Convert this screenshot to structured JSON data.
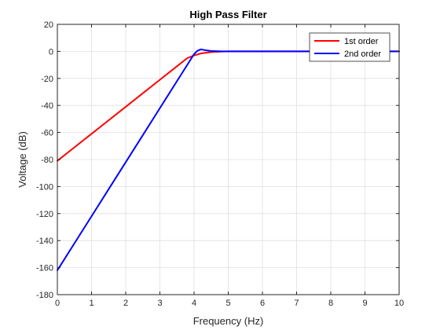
{
  "chart_data": {
    "type": "line",
    "title": "High Pass Filter",
    "xlabel": "Frequency (Hz)",
    "ylabel": "Voltage (dB)",
    "xlim": [
      0,
      10
    ],
    "ylim": [
      -180,
      20
    ],
    "xticks": [
      0,
      1,
      2,
      3,
      4,
      5,
      6,
      7,
      8,
      9,
      10
    ],
    "yticks": [
      20,
      0,
      -20,
      -40,
      -60,
      -80,
      -100,
      -120,
      -140,
      -160,
      -180
    ],
    "grid": true,
    "legend_position": "top-right",
    "series": [
      {
        "name": "1st order",
        "color": "#ff0000",
        "x": [
          0,
          0.5,
          1,
          1.5,
          2,
          2.5,
          3,
          3.5,
          3.8,
          4.0,
          4.2,
          4.5,
          4.8,
          5.0,
          6,
          7,
          8,
          9,
          10
        ],
        "y": [
          -81,
          -71,
          -61,
          -51,
          -41,
          -31,
          -21,
          -11,
          -5,
          -3,
          -1.5,
          -0.5,
          -0.1,
          0,
          0,
          0,
          0,
          0,
          0
        ]
      },
      {
        "name": "2nd order",
        "color": "#0000ff",
        "x": [
          0,
          0.5,
          1,
          1.5,
          2,
          2.5,
          3,
          3.5,
          3.8,
          4.0,
          4.1,
          4.2,
          4.3,
          4.5,
          4.8,
          5.0,
          6,
          7,
          8,
          9,
          10
        ],
        "y": [
          -162,
          -142,
          -122,
          -102,
          -82,
          -62,
          -42,
          -22,
          -10,
          -2,
          0.5,
          1.5,
          1,
          0.3,
          0,
          0,
          0,
          0,
          0,
          0,
          0
        ]
      }
    ]
  }
}
